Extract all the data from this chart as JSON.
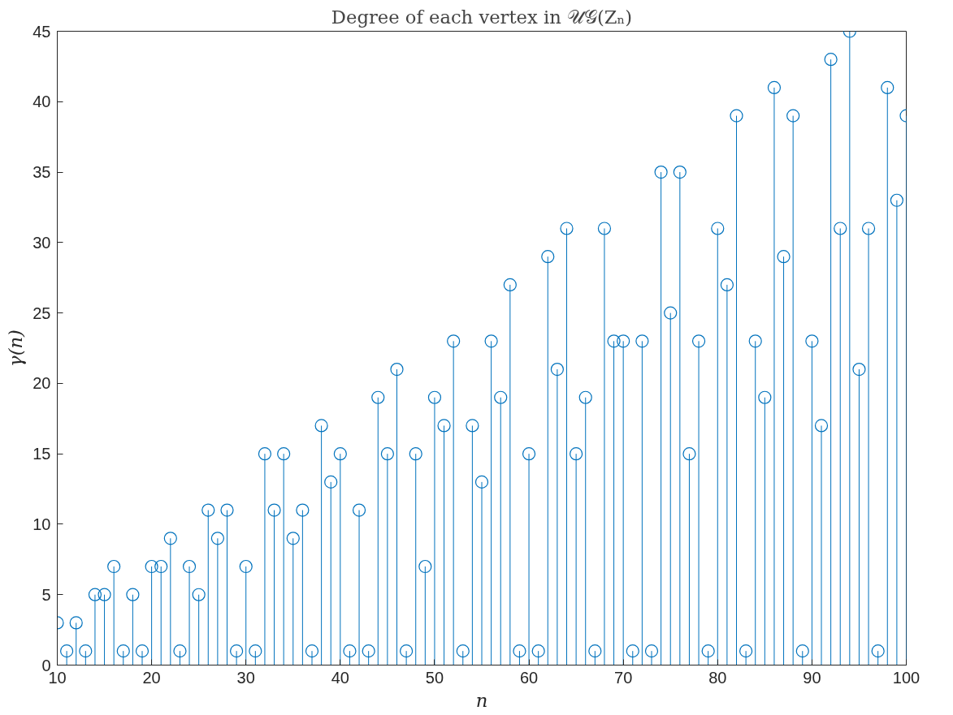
{
  "chart_data": {
    "type": "lollipop",
    "title": "Degree of each vertex in 𝒰𝒢(Zₙ)",
    "xlabel": "n",
    "ylabel": "γ(n)",
    "x": [
      10,
      11,
      12,
      13,
      14,
      15,
      16,
      17,
      18,
      19,
      20,
      21,
      22,
      23,
      24,
      25,
      26,
      27,
      28,
      29,
      30,
      31,
      32,
      33,
      34,
      35,
      36,
      37,
      38,
      39,
      40,
      41,
      42,
      43,
      44,
      45,
      46,
      47,
      48,
      49,
      50,
      51,
      52,
      53,
      54,
      55,
      56,
      57,
      58,
      59,
      60,
      61,
      62,
      63,
      64,
      65,
      66,
      67,
      68,
      69,
      70,
      71,
      72,
      73,
      74,
      75,
      76,
      77,
      78,
      79,
      80,
      81,
      82,
      83,
      84,
      85,
      86,
      87,
      88,
      89,
      90,
      91,
      92,
      93,
      94,
      95,
      96,
      97,
      98,
      99,
      100
    ],
    "series": [
      {
        "color": "#0072bd",
        "values": [
          3,
          1,
          3,
          1,
          5,
          5,
          7,
          1,
          5,
          1,
          7,
          7,
          9,
          1,
          7,
          5,
          11,
          9,
          11,
          1,
          7,
          1,
          15,
          11,
          15,
          9,
          11,
          1,
          17,
          13,
          15,
          1,
          11,
          1,
          19,
          15,
          21,
          1,
          15,
          7,
          19,
          17,
          23,
          1,
          17,
          13,
          23,
          19,
          27,
          1,
          15,
          1,
          29,
          21,
          31,
          15,
          19,
          1,
          31,
          23,
          23,
          1,
          23,
          1,
          35,
          25,
          35,
          15,
          23,
          1,
          31,
          27,
          39,
          1,
          23,
          19,
          41,
          29,
          39,
          1,
          23,
          17,
          43,
          31,
          45,
          21,
          31,
          1,
          41,
          33,
          39
        ]
      }
    ],
    "xlim": [
      10,
      100
    ],
    "ylim": [
      0,
      45
    ],
    "xticks": [
      10,
      20,
      30,
      40,
      50,
      60,
      70,
      80,
      90,
      100
    ],
    "yticks": [
      0,
      5,
      10,
      15,
      20,
      25,
      30,
      35,
      40,
      45
    ],
    "marker": "circle",
    "grid": false
  }
}
